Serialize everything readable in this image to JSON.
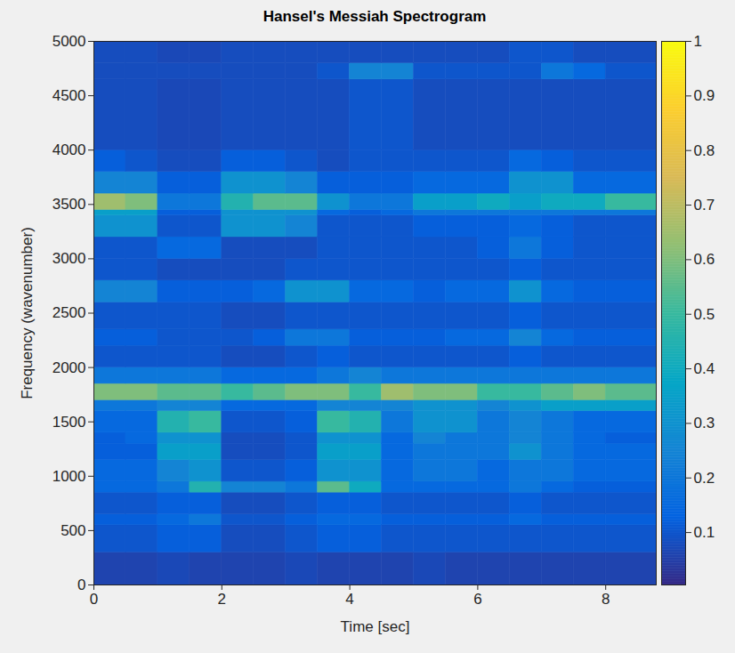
{
  "chart_data": {
    "type": "heatmap",
    "title": "Hansel's Messiah Spectrogram",
    "x_label": "Time [sec]",
    "y_label": "Frequency (wavenumber)",
    "xlim": [
      0,
      8.79
    ],
    "ylim": [
      0,
      5000
    ],
    "xticks": [
      0,
      2,
      4,
      6,
      8
    ],
    "yticks": [
      0,
      500,
      1000,
      1500,
      2000,
      2500,
      3000,
      3500,
      4000,
      4500,
      5000
    ],
    "x_edges": [
      0,
      0.5,
      1,
      1.5,
      2,
      2.5,
      3,
      3.5,
      4,
      4.5,
      5,
      5.5,
      6,
      6.5,
      7,
      7.5,
      8,
      8.79
    ],
    "y_edges": [
      0,
      300,
      550,
      650,
      850,
      950,
      1150,
      1300,
      1400,
      1600,
      1700,
      1850,
      2000,
      2200,
      2350,
      2600,
      2800,
      3000,
      3200,
      3400,
      3450,
      3600,
      3800,
      4000,
      4650,
      4800,
      5000
    ],
    "cells": [
      [
        0.06,
        0.06,
        0.07,
        0.06,
        0.06,
        0.06,
        0.07,
        0.06,
        0.06,
        0.06,
        0.07,
        0.06,
        0.06,
        0.06,
        0.06,
        0.06,
        0.06
      ],
      [
        0.1,
        0.1,
        0.12,
        0.12,
        0.08,
        0.08,
        0.1,
        0.12,
        0.12,
        0.1,
        0.1,
        0.1,
        0.1,
        0.1,
        0.1,
        0.1,
        0.1
      ],
      [
        0.12,
        0.12,
        0.15,
        0.2,
        0.1,
        0.1,
        0.12,
        0.15,
        0.15,
        0.12,
        0.12,
        0.12,
        0.12,
        0.15,
        0.12,
        0.12,
        0.12
      ],
      [
        0.1,
        0.1,
        0.12,
        0.12,
        0.08,
        0.08,
        0.1,
        0.12,
        0.12,
        0.1,
        0.1,
        0.1,
        0.1,
        0.12,
        0.1,
        0.1,
        0.1
      ],
      [
        0.15,
        0.15,
        0.2,
        0.45,
        0.25,
        0.25,
        0.2,
        0.55,
        0.4,
        0.15,
        0.15,
        0.15,
        0.15,
        0.2,
        0.15,
        0.12,
        0.12
      ],
      [
        0.15,
        0.15,
        0.25,
        0.3,
        0.1,
        0.1,
        0.12,
        0.3,
        0.3,
        0.15,
        0.2,
        0.2,
        0.15,
        0.2,
        0.2,
        0.15,
        0.15
      ],
      [
        0.12,
        0.12,
        0.35,
        0.35,
        0.08,
        0.08,
        0.1,
        0.35,
        0.35,
        0.15,
        0.2,
        0.2,
        0.2,
        0.3,
        0.2,
        0.15,
        0.15
      ],
      [
        0.12,
        0.15,
        0.3,
        0.3,
        0.08,
        0.08,
        0.1,
        0.3,
        0.3,
        0.15,
        0.25,
        0.2,
        0.2,
        0.25,
        0.2,
        0.15,
        0.12
      ],
      [
        0.15,
        0.15,
        0.45,
        0.5,
        0.1,
        0.1,
        0.12,
        0.5,
        0.45,
        0.2,
        0.3,
        0.3,
        0.2,
        0.25,
        0.2,
        0.15,
        0.15
      ],
      [
        0.2,
        0.2,
        0.25,
        0.25,
        0.15,
        0.15,
        0.15,
        0.25,
        0.25,
        0.25,
        0.3,
        0.3,
        0.25,
        0.3,
        0.35,
        0.35,
        0.35
      ],
      [
        0.6,
        0.6,
        0.55,
        0.55,
        0.5,
        0.55,
        0.6,
        0.6,
        0.5,
        0.65,
        0.6,
        0.6,
        0.5,
        0.5,
        0.55,
        0.6,
        0.55
      ],
      [
        0.2,
        0.2,
        0.2,
        0.2,
        0.15,
        0.15,
        0.15,
        0.2,
        0.25,
        0.2,
        0.2,
        0.2,
        0.2,
        0.2,
        0.2,
        0.2,
        0.2
      ],
      [
        0.1,
        0.1,
        0.1,
        0.1,
        0.08,
        0.08,
        0.1,
        0.12,
        0.1,
        0.1,
        0.1,
        0.1,
        0.1,
        0.12,
        0.1,
        0.1,
        0.1
      ],
      [
        0.12,
        0.12,
        0.1,
        0.1,
        0.1,
        0.12,
        0.2,
        0.2,
        0.12,
        0.12,
        0.12,
        0.15,
        0.15,
        0.25,
        0.15,
        0.12,
        0.12
      ],
      [
        0.1,
        0.1,
        0.1,
        0.1,
        0.08,
        0.08,
        0.1,
        0.1,
        0.1,
        0.1,
        0.1,
        0.1,
        0.1,
        0.12,
        0.1,
        0.1,
        0.1
      ],
      [
        0.25,
        0.25,
        0.12,
        0.12,
        0.12,
        0.15,
        0.3,
        0.3,
        0.15,
        0.15,
        0.12,
        0.15,
        0.15,
        0.3,
        0.15,
        0.12,
        0.12
      ],
      [
        0.1,
        0.1,
        0.08,
        0.08,
        0.08,
        0.08,
        0.1,
        0.1,
        0.1,
        0.1,
        0.1,
        0.1,
        0.1,
        0.12,
        0.1,
        0.1,
        0.1
      ],
      [
        0.1,
        0.1,
        0.15,
        0.15,
        0.08,
        0.08,
        0.08,
        0.1,
        0.1,
        0.1,
        0.1,
        0.1,
        0.12,
        0.2,
        0.12,
        0.1,
        0.1
      ],
      [
        0.3,
        0.3,
        0.1,
        0.1,
        0.3,
        0.3,
        0.25,
        0.1,
        0.1,
        0.1,
        0.12,
        0.12,
        0.12,
        0.15,
        0.12,
        0.1,
        0.1
      ],
      [
        0.35,
        0.35,
        0.12,
        0.12,
        0.3,
        0.3,
        0.3,
        0.15,
        0.12,
        0.15,
        0.2,
        0.2,
        0.2,
        0.2,
        0.2,
        0.2,
        0.2
      ],
      [
        0.65,
        0.6,
        0.2,
        0.2,
        0.45,
        0.55,
        0.55,
        0.3,
        0.2,
        0.2,
        0.35,
        0.35,
        0.4,
        0.35,
        0.4,
        0.4,
        0.5
      ],
      [
        0.25,
        0.25,
        0.12,
        0.12,
        0.3,
        0.3,
        0.25,
        0.12,
        0.12,
        0.12,
        0.15,
        0.15,
        0.15,
        0.3,
        0.3,
        0.15,
        0.15
      ],
      [
        0.12,
        0.1,
        0.08,
        0.08,
        0.12,
        0.12,
        0.1,
        0.08,
        0.1,
        0.1,
        0.1,
        0.1,
        0.1,
        0.15,
        0.12,
        0.1,
        0.1
      ],
      [
        0.08,
        0.08,
        0.07,
        0.07,
        0.08,
        0.08,
        0.08,
        0.08,
        0.1,
        0.1,
        0.08,
        0.08,
        0.08,
        0.08,
        0.08,
        0.08,
        0.08
      ],
      [
        0.08,
        0.08,
        0.08,
        0.08,
        0.08,
        0.08,
        0.08,
        0.1,
        0.25,
        0.25,
        0.1,
        0.1,
        0.1,
        0.1,
        0.2,
        0.15,
        0.1
      ],
      [
        0.08,
        0.08,
        0.07,
        0.07,
        0.08,
        0.08,
        0.08,
        0.08,
        0.08,
        0.08,
        0.08,
        0.08,
        0.08,
        0.1,
        0.1,
        0.08,
        0.08
      ]
    ],
    "colorbar_lim": [
      0.004,
      1
    ],
    "colorbar_ticks": [
      0.1,
      0.2,
      0.3,
      0.4,
      0.5,
      0.6,
      0.7,
      0.8,
      0.9,
      1
    ]
  }
}
